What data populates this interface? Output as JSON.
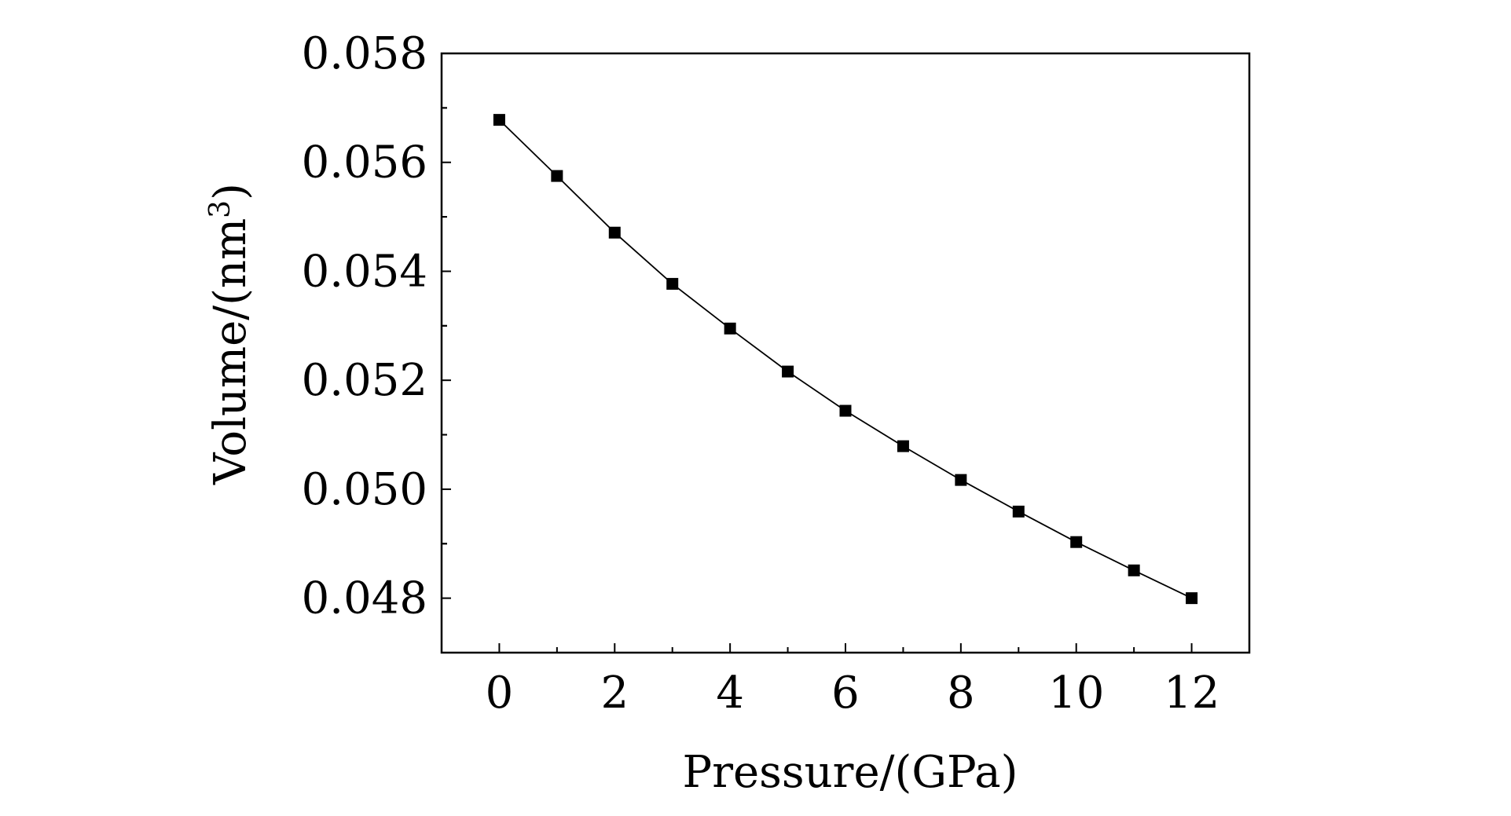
{
  "chart_data": {
    "type": "line",
    "title": "",
    "xlabel": "Pressure/(GPa)",
    "ylabel": "Volume/(nm",
    "ylabel_superscript": "3",
    "ylabel_suffix": ")",
    "xlim": [
      -1,
      13
    ],
    "ylim": [
      0.047,
      0.058
    ],
    "x_ticks": [
      0,
      2,
      4,
      6,
      8,
      10,
      12
    ],
    "x_tick_labels": [
      "0",
      "2",
      "4",
      "6",
      "8",
      "10",
      "12"
    ],
    "y_ticks": [
      0.048,
      0.05,
      0.052,
      0.054,
      0.056,
      0.058
    ],
    "y_tick_labels": [
      "0.048",
      "0.050",
      "0.052",
      "0.054",
      "0.056",
      "0.058"
    ],
    "grid": false,
    "series": [
      {
        "marker": "square",
        "color": "#000000",
        "x": [
          0,
          1,
          2,
          3,
          4,
          5,
          6,
          7,
          8,
          9,
          10,
          11,
          12
        ],
        "y": [
          0.05678,
          0.05575,
          0.05471,
          0.05377,
          0.05295,
          0.05216,
          0.05144,
          0.05079,
          0.05017,
          0.04959,
          0.04903,
          0.04851,
          0.048
        ]
      }
    ]
  }
}
